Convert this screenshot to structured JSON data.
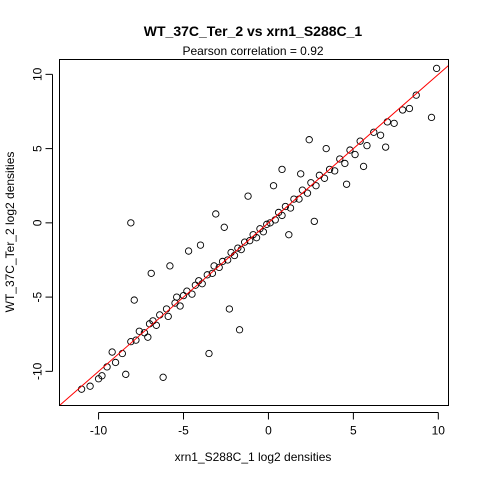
{
  "chart_data": {
    "type": "scatter",
    "title": "WT_37C_Ter_2 vs xrn1_S288C_1",
    "subtitle": "Pearson correlation =  0.92",
    "xlabel": "xrn1_S288C_1 log2 densities",
    "ylabel": "WT_37C_Ter_2 log2 densities",
    "xlim": [
      -12.3,
      10.6
    ],
    "ylim": [
      -12.3,
      11.0
    ],
    "xticks": [
      -10,
      -5,
      0,
      5,
      10
    ],
    "xtick_labels": [
      "-10",
      "-5",
      "0",
      "5",
      "10"
    ],
    "yticks": [
      -10,
      -5,
      0,
      5,
      10
    ],
    "ytick_labels": [
      "-10",
      "-5",
      "0",
      "5",
      "10"
    ],
    "grid": false,
    "legend": "none",
    "point_style": "open-circle",
    "point_color": "#000000",
    "fit_line": {
      "type": "identity",
      "slope": 1,
      "intercept": 0,
      "color": "#ff0000"
    },
    "series": [
      {
        "x": [
          -10.0,
          -9.5,
          -9.0,
          -9.2,
          -8.6,
          -8.1,
          -7.8,
          -7.6,
          -7.3,
          -7.0,
          -7.1,
          -6.8,
          -6.4,
          -6.6,
          -6.0,
          -5.9,
          -5.5,
          -5.4,
          -5.2,
          -5.0,
          -4.8,
          -4.5,
          -4.3,
          -4.1,
          -3.9,
          -3.6,
          -3.3,
          -3.2,
          -2.9,
          -2.7,
          -2.4,
          -2.2,
          -2.0,
          -1.8,
          -1.6,
          -1.4,
          -1.1,
          -0.9,
          -0.7,
          -0.5,
          -0.3,
          -0.1,
          0.1,
          0.4,
          0.6,
          0.8,
          1.0,
          1.3,
          1.5,
          1.8,
          2.0,
          2.3,
          2.5,
          2.8,
          3.0,
          3.3,
          3.6,
          3.9,
          4.2,
          4.5,
          4.8,
          5.1,
          5.4,
          5.8,
          6.2,
          6.6,
          7.0,
          7.4,
          7.9,
          8.3,
          8.7,
          9.6,
          9.9,
          6.9,
          5.6,
          4.6,
          2.7,
          1.2,
          -2.3,
          -8.1,
          -11.0,
          -10.5,
          -9.8,
          -8.4,
          -6.2,
          -3.5,
          -1.7,
          -5.8,
          -4.0,
          -2.6,
          0.3,
          1.9,
          3.4,
          -7.9,
          -6.9,
          -4.7,
          -3.1,
          -1.2,
          0.8,
          2.4
        ],
        "y": [
          -10.5,
          -9.7,
          -9.4,
          -8.7,
          -8.8,
          -8.0,
          -7.9,
          -7.3,
          -7.4,
          -6.8,
          -7.7,
          -6.6,
          -6.2,
          -6.9,
          -5.8,
          -6.3,
          -5.4,
          -5.0,
          -5.6,
          -4.9,
          -4.6,
          -4.8,
          -4.2,
          -3.9,
          -4.1,
          -3.5,
          -3.4,
          -2.9,
          -3.0,
          -2.6,
          -2.5,
          -2.0,
          -2.2,
          -1.7,
          -1.8,
          -1.3,
          -1.2,
          -0.8,
          -1.0,
          -0.4,
          -0.6,
          -0.1,
          0.0,
          0.2,
          0.7,
          0.5,
          1.1,
          1.0,
          1.6,
          1.6,
          2.2,
          2.0,
          2.7,
          2.5,
          3.2,
          3.0,
          3.6,
          3.5,
          4.3,
          4.0,
          4.9,
          4.6,
          5.5,
          5.2,
          6.1,
          5.9,
          6.8,
          6.7,
          7.6,
          7.7,
          8.6,
          7.1,
          10.4,
          5.1,
          3.8,
          2.6,
          0.1,
          -0.8,
          -5.8,
          0.0,
          -11.2,
          -11.0,
          -10.3,
          -10.2,
          -10.4,
          -8.8,
          -7.2,
          -2.9,
          -1.5,
          -0.3,
          2.5,
          3.3,
          5.0,
          -5.2,
          -3.4,
          -1.9,
          0.6,
          1.8,
          3.6,
          5.6
        ]
      }
    ]
  }
}
